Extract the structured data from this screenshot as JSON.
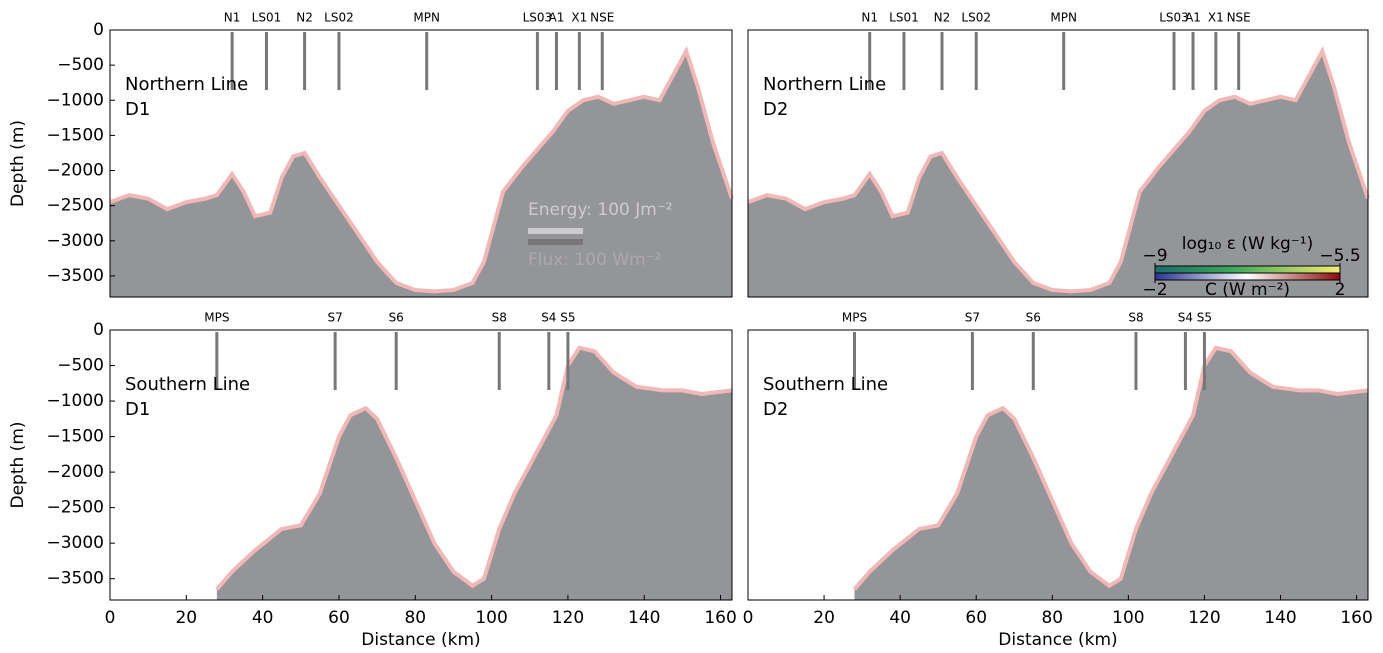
{
  "chart_data": [
    {
      "type": "area",
      "title": "Northern Line",
      "subtitle": "D1",
      "y_label": "Depth (m)",
      "xlim": [
        0,
        163
      ],
      "ylim": [
        -3800,
        0
      ],
      "yticks": [
        {
          "value": 0,
          "label": "0"
        },
        {
          "value": -500,
          "label": "−500"
        },
        {
          "value": -1000,
          "label": "−1000"
        },
        {
          "value": -1500,
          "label": "−1500"
        },
        {
          "value": -2000,
          "label": "−2000"
        },
        {
          "value": -2500,
          "label": "−2500"
        },
        {
          "value": -3000,
          "label": "−3000"
        },
        {
          "value": -3500,
          "label": "−3500"
        }
      ],
      "x": [
        0,
        5,
        10,
        15,
        20,
        25,
        28,
        32,
        35,
        38,
        42,
        45,
        48,
        51,
        55,
        60,
        65,
        70,
        75,
        80,
        85,
        90,
        95,
        98,
        100,
        103,
        108,
        112,
        116,
        120,
        124,
        128,
        132,
        136,
        140,
        144,
        147,
        151,
        154,
        158,
        163
      ],
      "values": [
        -2450,
        -2350,
        -2400,
        -2550,
        -2450,
        -2400,
        -2350,
        -2050,
        -2300,
        -2650,
        -2600,
        -2100,
        -1800,
        -1750,
        -2100,
        -2500,
        -2900,
        -3300,
        -3600,
        -3700,
        -3720,
        -3700,
        -3600,
        -3300,
        -2900,
        -2300,
        -1950,
        -1700,
        -1450,
        -1150,
        -1000,
        -950,
        -1050,
        -1000,
        -950,
        -1000,
        -700,
        -300,
        -800,
        -1600,
        -2400
      ],
      "color": "#939598",
      "stations": [
        {
          "name": "N1",
          "x": 32
        },
        {
          "name": "LS01",
          "x": 41
        },
        {
          "name": "N2",
          "x": 51
        },
        {
          "name": "LS02",
          "x": 60
        },
        {
          "name": "MPN",
          "x": 83
        },
        {
          "name": "LS03",
          "x": 112
        },
        {
          "name": "A1",
          "x": 117
        },
        {
          "name": "X1",
          "x": 123
        },
        {
          "name": "NSE",
          "x": 129
        }
      ],
      "annotations": [
        "Energy: 100 Jm⁻²",
        "Flux: 100 Wm⁻²"
      ]
    },
    {
      "type": "area",
      "title": "Northern Line",
      "subtitle": "D2",
      "xlim": [
        0,
        163
      ],
      "ylim": [
        -3800,
        0
      ],
      "x": [
        0,
        5,
        10,
        15,
        20,
        25,
        28,
        32,
        35,
        38,
        42,
        45,
        48,
        51,
        55,
        60,
        65,
        70,
        75,
        80,
        85,
        90,
        95,
        98,
        100,
        103,
        108,
        112,
        116,
        120,
        124,
        128,
        132,
        136,
        140,
        144,
        147,
        151,
        154,
        158,
        163
      ],
      "values": [
        -2450,
        -2350,
        -2400,
        -2550,
        -2450,
        -2400,
        -2350,
        -2050,
        -2300,
        -2650,
        -2600,
        -2100,
        -1800,
        -1750,
        -2100,
        -2500,
        -2900,
        -3300,
        -3600,
        -3700,
        -3720,
        -3700,
        -3600,
        -3300,
        -2900,
        -2300,
        -1950,
        -1700,
        -1450,
        -1150,
        -1000,
        -950,
        -1050,
        -1000,
        -950,
        -1000,
        -700,
        -300,
        -800,
        -1600,
        -2400
      ],
      "color": "#939598",
      "stations": [
        {
          "name": "N1",
          "x": 32
        },
        {
          "name": "LS01",
          "x": 41
        },
        {
          "name": "N2",
          "x": 51
        },
        {
          "name": "LS02",
          "x": 60
        },
        {
          "name": "MPN",
          "x": 83
        },
        {
          "name": "LS03",
          "x": 112
        },
        {
          "name": "A1",
          "x": 117
        },
        {
          "name": "X1",
          "x": 123
        },
        {
          "name": "NSE",
          "x": 129
        }
      ],
      "colorbar": {
        "label": "log₁₀ ε (W kg⁻¹)",
        "ticks": [
          {
            "value": -9,
            "label": "−9"
          },
          {
            "value": -5.5,
            "label": "−5.5"
          }
        ],
        "label2": "C (W m⁻²)",
        "ticks2": [
          {
            "value": -2,
            "label": "−2"
          },
          {
            "value": 2,
            "label": "2"
          }
        ]
      }
    },
    {
      "type": "area",
      "title": "Southern Line",
      "subtitle": "D1",
      "y_label": "Depth (m)",
      "x_label": "Distance (km)",
      "xlim": [
        0,
        163
      ],
      "ylim": [
        -3800,
        0
      ],
      "xticks": [
        0,
        20,
        40,
        60,
        80,
        100,
        120,
        140,
        160
      ],
      "yticks": [
        {
          "value": 0,
          "label": "0"
        },
        {
          "value": -500,
          "label": "−500"
        },
        {
          "value": -1000,
          "label": "−1000"
        },
        {
          "value": -1500,
          "label": "−1500"
        },
        {
          "value": -2000,
          "label": "−2000"
        },
        {
          "value": -2500,
          "label": "−2500"
        },
        {
          "value": -3000,
          "label": "−3000"
        },
        {
          "value": -3500,
          "label": "−3500"
        }
      ],
      "x": [
        28,
        32,
        38,
        45,
        50,
        55,
        60,
        63,
        67,
        70,
        75,
        80,
        85,
        90,
        95,
        98,
        102,
        106,
        112,
        117,
        120,
        123,
        127,
        132,
        138,
        145,
        150,
        155,
        163
      ],
      "values": [
        -3650,
        -3400,
        -3100,
        -2800,
        -2750,
        -2300,
        -1500,
        -1200,
        -1100,
        -1250,
        -1800,
        -2400,
        -3000,
        -3400,
        -3600,
        -3500,
        -2800,
        -2300,
        -1700,
        -1200,
        -500,
        -250,
        -300,
        -600,
        -800,
        -850,
        -850,
        -900,
        -850
      ],
      "color": "#939598",
      "stations": [
        {
          "name": "MPS",
          "x": 28
        },
        {
          "name": "S7",
          "x": 59
        },
        {
          "name": "S6",
          "x": 75
        },
        {
          "name": "S8",
          "x": 102
        },
        {
          "name": "S4",
          "x": 115
        },
        {
          "name": "S5",
          "x": 120
        }
      ]
    },
    {
      "type": "area",
      "title": "Southern Line",
      "subtitle": "D2",
      "x_label": "Distance (km)",
      "xlim": [
        0,
        163
      ],
      "ylim": [
        -3800,
        0
      ],
      "xticks": [
        0,
        20,
        40,
        60,
        80,
        100,
        120,
        140,
        160
      ],
      "x": [
        28,
        32,
        38,
        45,
        50,
        55,
        60,
        63,
        67,
        70,
        75,
        80,
        85,
        90,
        95,
        98,
        102,
        106,
        112,
        117,
        120,
        123,
        127,
        132,
        138,
        145,
        150,
        155,
        163
      ],
      "values": [
        -3650,
        -3400,
        -3100,
        -2800,
        -2750,
        -2300,
        -1500,
        -1200,
        -1100,
        -1250,
        -1800,
        -2400,
        -3000,
        -3400,
        -3600,
        -3500,
        -2800,
        -2300,
        -1700,
        -1200,
        -500,
        -250,
        -300,
        -600,
        -800,
        -850,
        -850,
        -900,
        -850
      ],
      "color": "#939598",
      "stations": [
        {
          "name": "MPS",
          "x": 28
        },
        {
          "name": "S7",
          "x": 59
        },
        {
          "name": "S6",
          "x": 75
        },
        {
          "name": "S8",
          "x": 102
        },
        {
          "name": "S4",
          "x": 115
        },
        {
          "name": "S5",
          "x": 120
        }
      ]
    }
  ]
}
